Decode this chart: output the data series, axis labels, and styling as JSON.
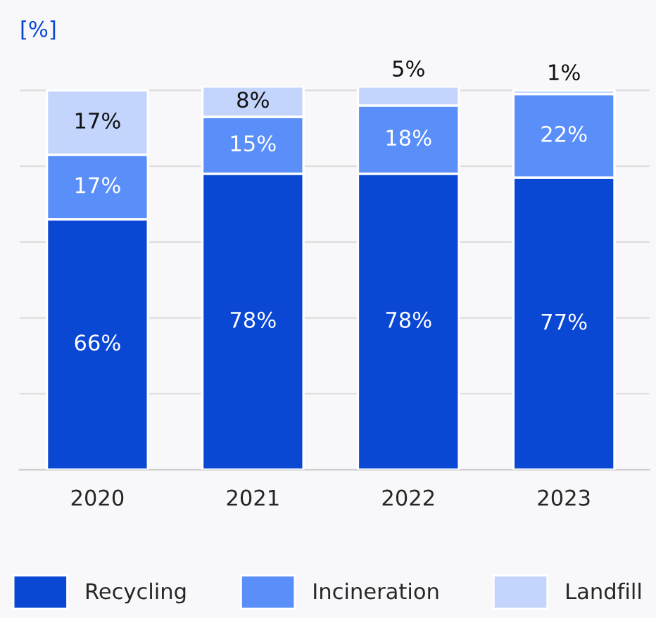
{
  "chart_data": {
    "type": "bar",
    "stacked": true,
    "ylabel": "[%]",
    "categories": [
      "2020",
      "2021",
      "2022",
      "2023"
    ],
    "series": [
      {
        "name": "Recycling",
        "color": "#0a48d4",
        "values": [
          66,
          78,
          78,
          77
        ],
        "value_labels": [
          "66%",
          "78%",
          "78%",
          "77%"
        ]
      },
      {
        "name": "Incineration",
        "color": "#5a8ef9",
        "values": [
          17,
          15,
          18,
          22
        ],
        "value_labels": [
          "17%",
          "15%",
          "18%",
          "22%"
        ]
      },
      {
        "name": "Landfill",
        "color": "#c3d5fd",
        "values": [
          17,
          8,
          5,
          1
        ],
        "value_labels": [
          "17%",
          "8%",
          "5%",
          "1%"
        ]
      }
    ],
    "grid": "y",
    "legend": "bottom"
  }
}
